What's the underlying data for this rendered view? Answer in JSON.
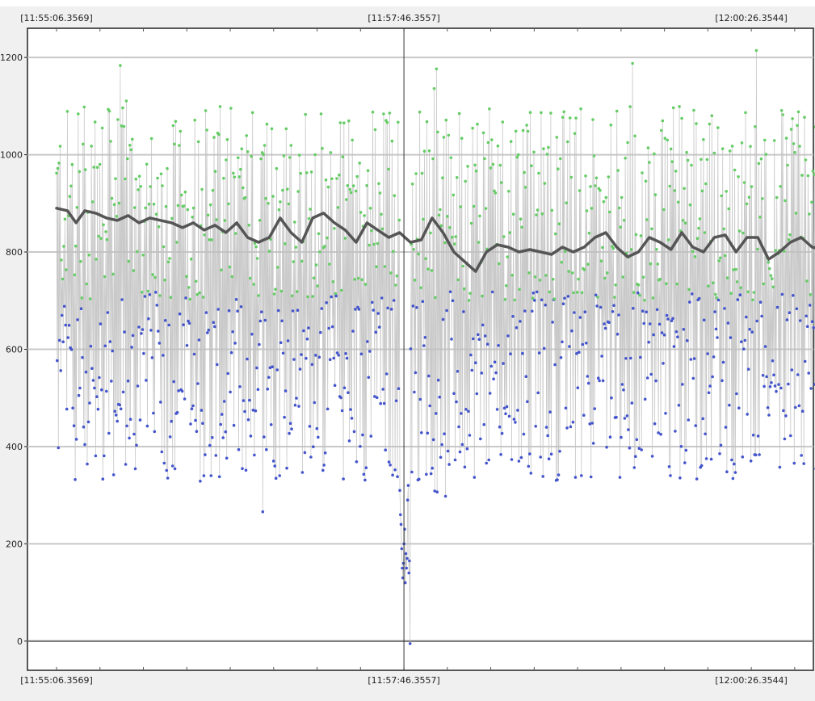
{
  "chart_data": {
    "type": "scatter",
    "title": "",
    "xlabel": "",
    "ylabel": "",
    "x_top_labels": [
      "[11:55:06.3569]",
      "[11:57:46.3557]",
      "[12:00:26.3544]"
    ],
    "x_bottom_labels": [
      "[11:55:06.3569]",
      "[11:57:46.3557]",
      "[12:00:26.3544]"
    ],
    "x_label_seconds": [
      0,
      160,
      320
    ],
    "xlim_seconds": [
      -13.4,
      348.6
    ],
    "x_data_range_seconds": [
      0,
      360
    ],
    "cursor_seconds": 160,
    "yticks": [
      0,
      200,
      400,
      600,
      800,
      1000,
      1200
    ],
    "ylim": [
      -60,
      1260
    ],
    "grid": true,
    "legend": "none",
    "colors": {
      "background": "#f0f0f0",
      "plot_bg": "#ffffff",
      "grid": "#c8c8c8",
      "zero_line": "#808080",
      "trace": "#c0c0c0",
      "high_points": "#66cc66",
      "low_points": "#4455cc",
      "moving_average": "#555555",
      "cursor": "#333333"
    },
    "series": [
      {
        "kind": "raw-samples",
        "count": 1300,
        "high_band": [
          700,
          1100
        ],
        "low_band": [
          330,
          720
        ],
        "dip_window_seconds": [
          158,
          163
        ],
        "dip_values": [
          310,
          260,
          240,
          190,
          150,
          130,
          160,
          200,
          230,
          120,
          180,
          150,
          170,
          290,
          320,
          140,
          165,
          -5
        ]
      },
      {
        "kind": "moving-average",
        "x_seconds": [
          0,
          5,
          9,
          13,
          18,
          23,
          28,
          33,
          38,
          43,
          48,
          53,
          58,
          63,
          68,
          73,
          78,
          83,
          88,
          93,
          98,
          103,
          108,
          113,
          118,
          123,
          128,
          133,
          138,
          143,
          148,
          153,
          158,
          163,
          168,
          173,
          178,
          183,
          188,
          193,
          198,
          203,
          208,
          213,
          218,
          223,
          228,
          233,
          238,
          243,
          248,
          253,
          258,
          263,
          268,
          273,
          278,
          283,
          288,
          293,
          298,
          303,
          308,
          313,
          318,
          323,
          328,
          333,
          338,
          343,
          348,
          353,
          358
        ],
        "values": [
          890,
          885,
          860,
          885,
          880,
          870,
          865,
          875,
          860,
          870,
          865,
          860,
          850,
          860,
          845,
          855,
          840,
          860,
          830,
          820,
          830,
          870,
          840,
          820,
          870,
          880,
          860,
          845,
          820,
          860,
          845,
          830,
          840,
          820,
          825,
          870,
          840,
          800,
          780,
          760,
          800,
          815,
          810,
          800,
          805,
          800,
          795,
          810,
          800,
          810,
          830,
          840,
          810,
          790,
          800,
          830,
          820,
          805,
          840,
          810,
          800,
          830,
          835,
          800,
          830,
          830,
          785,
          800,
          820,
          830,
          810,
          805,
          805
        ]
      }
    ]
  }
}
